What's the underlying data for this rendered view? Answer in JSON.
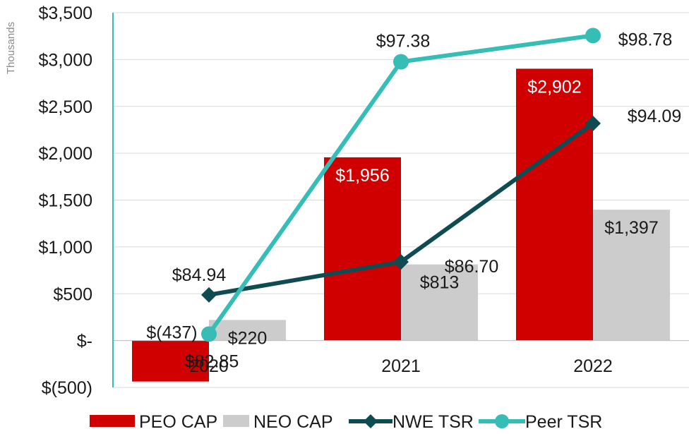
{
  "chart_data": {
    "type": "bar+line",
    "categories": [
      "2020",
      "2021",
      "2022"
    ],
    "bar_series": [
      {
        "name": "PEO CAP",
        "color": "#d00000",
        "values": [
          -437,
          1956,
          2902
        ],
        "labels": [
          "$(437)",
          "$1,956",
          "$2,902"
        ]
      },
      {
        "name": "NEO CAP",
        "color": "#cccccc",
        "values": [
          220,
          813,
          1397
        ],
        "labels": [
          "$220",
          "$813",
          "$1,397"
        ]
      }
    ],
    "line_series": [
      {
        "name": "NWE TSR",
        "color": "#0f4c52",
        "marker": "diamond",
        "values": [
          84.94,
          86.7,
          94.09
        ],
        "labels": [
          "$84.94",
          "$86.70",
          "$94.09"
        ]
      },
      {
        "name": "Peer TSR",
        "color": "#35bdb6",
        "marker": "circle",
        "values": [
          82.85,
          97.38,
          98.78
        ],
        "labels": [
          "$82.85",
          "$97.38",
          "$98.78"
        ]
      }
    ],
    "y_axis": {
      "unit_label": "Thousands",
      "min": -500,
      "max": 3500,
      "step": 500,
      "tick_labels": [
        "$(500)",
        "$-",
        "$500",
        "$1,000",
        "$1,500",
        "$2,000",
        "$2,500",
        "$3,000",
        "$3,500"
      ]
    },
    "secondary_axis_hidden": {
      "min": 80,
      "max": 100
    },
    "grid": true,
    "legend_position": "bottom"
  }
}
